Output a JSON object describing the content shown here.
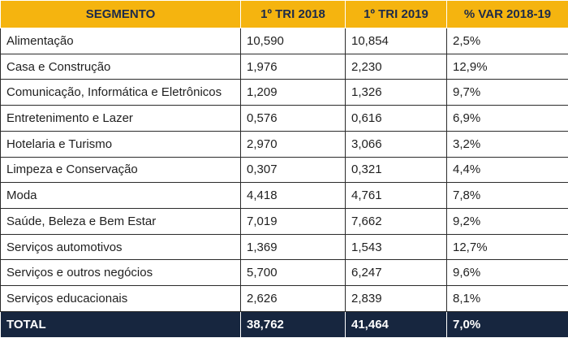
{
  "table": {
    "headers": [
      "SEGMENTO",
      "1º TRI 2018",
      "1º TRI 2019",
      "% VAR 2018-19"
    ],
    "rows": [
      [
        "Alimentação",
        "10,590",
        "10,854",
        "2,5%"
      ],
      [
        "Casa e Construção",
        "1,976",
        "2,230",
        "12,9%"
      ],
      [
        "Comunicação, Informática e Eletrônicos",
        "1,209",
        "1,326",
        "9,7%"
      ],
      [
        "Entretenimento e Lazer",
        "0,576",
        "0,616",
        "6,9%"
      ],
      [
        "Hotelaria e Turismo",
        "2,970",
        "3,066",
        "3,2%"
      ],
      [
        "Limpeza e Conservação",
        "0,307",
        "0,321",
        "4,4%"
      ],
      [
        "Moda",
        "4,418",
        "4,761",
        "7,8%"
      ],
      [
        "Saúde, Beleza e Bem Estar",
        "7,019",
        "7,662",
        "9,2%"
      ],
      [
        "Serviços automotivos",
        "1,369",
        "1,543",
        "12,7%"
      ],
      [
        "Serviços e outros negócios",
        "5,700",
        "6,247",
        "9,6%"
      ],
      [
        "Serviços educacionais",
        "2,626",
        "2,839",
        "8,1%"
      ]
    ],
    "total": [
      "TOTAL",
      "38,762",
      "41,464",
      "7,0%"
    ]
  },
  "colors": {
    "header_bg": "#f5b40f",
    "header_text": "#1c2a4a",
    "total_bg": "#17263f",
    "total_text": "#ffffff"
  }
}
